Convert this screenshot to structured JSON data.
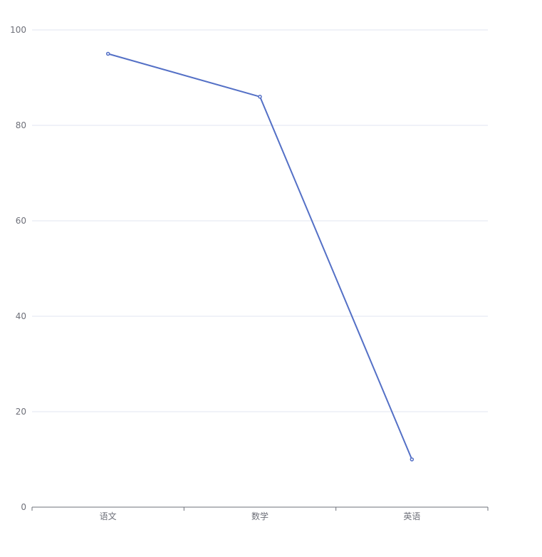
{
  "chart_data": {
    "type": "line",
    "categories": [
      "语文",
      "数学",
      "英语"
    ],
    "series": [
      {
        "values": [
          95,
          86,
          10
        ]
      }
    ],
    "ylim": [
      0,
      100
    ],
    "yticks": [
      0,
      20,
      40,
      60,
      80,
      100
    ],
    "grid": true,
    "colors": {
      "series": "#5470c6"
    }
  }
}
